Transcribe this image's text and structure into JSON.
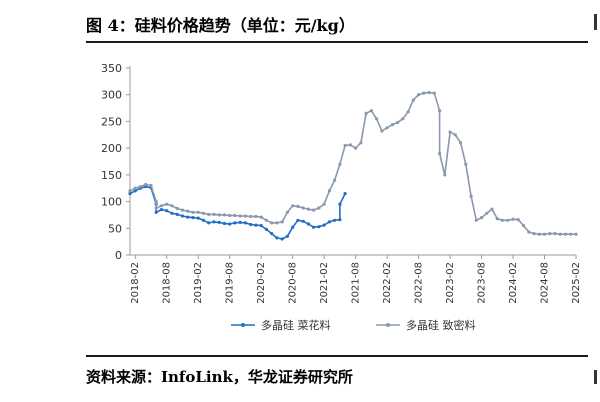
{
  "page": {
    "title": "图 4：硅料价格趋势（单位：元/kg）",
    "source": "资料来源：InfoLink，华龙证券研究所"
  },
  "chart_data": {
    "type": "line",
    "title": "",
    "xlabel": "",
    "ylabel": "",
    "ylim": [
      0,
      350
    ],
    "yticks": [
      0,
      50,
      100,
      150,
      200,
      250,
      300,
      350
    ],
    "xlim": [
      "2018-01",
      "2025-02"
    ],
    "xticks": [
      "2018-02",
      "2018-08",
      "2019-02",
      "2019-08",
      "2020-02",
      "2020-08",
      "2021-02",
      "2021-08",
      "2022-02",
      "2022-08",
      "2023-02",
      "2023-08",
      "2024-02",
      "2024-08",
      "2025-02"
    ],
    "grid": false,
    "legend": "bottom",
    "series": [
      {
        "name": "多晶硅 菜花料",
        "color": "#1f6fc5",
        "points": [
          [
            "2018-01",
            115
          ],
          [
            "2018-02",
            120
          ],
          [
            "2018-03",
            125
          ],
          [
            "2018-04",
            128
          ],
          [
            "2018-05",
            126
          ],
          [
            "2018-06",
            95
          ],
          [
            "2018-06",
            80
          ],
          [
            "2018-07",
            85
          ],
          [
            "2018-08",
            83
          ],
          [
            "2018-09",
            78
          ],
          [
            "2018-10",
            76
          ],
          [
            "2018-11",
            73
          ],
          [
            "2018-12",
            71
          ],
          [
            "2019-01",
            70
          ],
          [
            "2019-02",
            69
          ],
          [
            "2019-03",
            65
          ],
          [
            "2019-04",
            60
          ],
          [
            "2019-05",
            62
          ],
          [
            "2019-06",
            61
          ],
          [
            "2019-07",
            59
          ],
          [
            "2019-08",
            58
          ],
          [
            "2019-09",
            60
          ],
          [
            "2019-10",
            61
          ],
          [
            "2019-11",
            60
          ],
          [
            "2019-12",
            57
          ],
          [
            "2020-01",
            56
          ],
          [
            "2020-02",
            55
          ],
          [
            "2020-03",
            48
          ],
          [
            "2020-04",
            40
          ],
          [
            "2020-05",
            32
          ],
          [
            "2020-06",
            30
          ],
          [
            "2020-07",
            35
          ],
          [
            "2020-08",
            52
          ],
          [
            "2020-09",
            65
          ],
          [
            "2020-10",
            63
          ],
          [
            "2020-11",
            58
          ],
          [
            "2020-12",
            52
          ],
          [
            "2021-01",
            53
          ],
          [
            "2021-02",
            56
          ],
          [
            "2021-03",
            62
          ],
          [
            "2021-04",
            65
          ],
          [
            "2021-05",
            66
          ],
          [
            "2021-05",
            95
          ],
          [
            "2021-06",
            115
          ]
        ]
      },
      {
        "name": "多晶硅 致密料",
        "color": "#8a98ad",
        "points": [
          [
            "2018-01",
            120
          ],
          [
            "2018-02",
            125
          ],
          [
            "2018-03",
            128
          ],
          [
            "2018-04",
            132
          ],
          [
            "2018-05",
            130
          ],
          [
            "2018-06",
            100
          ],
          [
            "2018-06",
            88
          ],
          [
            "2018-07",
            92
          ],
          [
            "2018-08",
            95
          ],
          [
            "2018-09",
            92
          ],
          [
            "2018-10",
            87
          ],
          [
            "2018-11",
            84
          ],
          [
            "2018-12",
            82
          ],
          [
            "2019-01",
            80
          ],
          [
            "2019-02",
            80
          ],
          [
            "2019-03",
            78
          ],
          [
            "2019-04",
            76
          ],
          [
            "2019-05",
            76
          ],
          [
            "2019-06",
            75
          ],
          [
            "2019-07",
            75
          ],
          [
            "2019-08",
            74
          ],
          [
            "2019-09",
            74
          ],
          [
            "2019-10",
            73
          ],
          [
            "2019-11",
            73
          ],
          [
            "2019-12",
            72
          ],
          [
            "2020-01",
            72
          ],
          [
            "2020-02",
            71
          ],
          [
            "2020-03",
            65
          ],
          [
            "2020-04",
            60
          ],
          [
            "2020-05",
            60
          ],
          [
            "2020-06",
            62
          ],
          [
            "2020-07",
            80
          ],
          [
            "2020-08",
            92
          ],
          [
            "2020-09",
            91
          ],
          [
            "2020-10",
            88
          ],
          [
            "2020-11",
            86
          ],
          [
            "2020-12",
            84
          ],
          [
            "2021-01",
            88
          ],
          [
            "2021-02",
            95
          ],
          [
            "2021-03",
            120
          ],
          [
            "2021-04",
            140
          ],
          [
            "2021-05",
            170
          ],
          [
            "2021-06",
            205
          ],
          [
            "2021-07",
            206
          ],
          [
            "2021-08",
            200
          ],
          [
            "2021-09",
            210
          ],
          [
            "2021-10",
            265
          ],
          [
            "2021-11",
            270
          ],
          [
            "2021-12",
            255
          ],
          [
            "2022-01",
            232
          ],
          [
            "2022-02",
            238
          ],
          [
            "2022-03",
            244
          ],
          [
            "2022-04",
            248
          ],
          [
            "2022-05",
            255
          ],
          [
            "2022-06",
            268
          ],
          [
            "2022-07",
            290
          ],
          [
            "2022-08",
            300
          ],
          [
            "2022-09",
            303
          ],
          [
            "2022-10",
            304
          ],
          [
            "2022-11",
            303
          ],
          [
            "2022-12",
            270
          ],
          [
            "2022-12",
            190
          ],
          [
            "2023-01",
            150
          ],
          [
            "2023-02",
            230
          ],
          [
            "2023-03",
            225
          ],
          [
            "2023-04",
            210
          ],
          [
            "2023-05",
            170
          ],
          [
            "2023-06",
            110
          ],
          [
            "2023-07",
            65
          ],
          [
            "2023-08",
            70
          ],
          [
            "2023-09",
            78
          ],
          [
            "2023-10",
            86
          ],
          [
            "2023-11",
            68
          ],
          [
            "2023-12",
            65
          ],
          [
            "2024-01",
            65
          ],
          [
            "2024-02",
            67
          ],
          [
            "2024-03",
            66
          ],
          [
            "2024-04",
            55
          ],
          [
            "2024-05",
            43
          ],
          [
            "2024-06",
            40
          ],
          [
            "2024-07",
            39
          ],
          [
            "2024-08",
            39
          ],
          [
            "2024-09",
            40
          ],
          [
            "2024-10",
            40
          ],
          [
            "2024-11",
            39
          ],
          [
            "2024-12",
            39
          ],
          [
            "2025-01",
            39
          ],
          [
            "2025-02",
            39
          ]
        ]
      }
    ]
  }
}
